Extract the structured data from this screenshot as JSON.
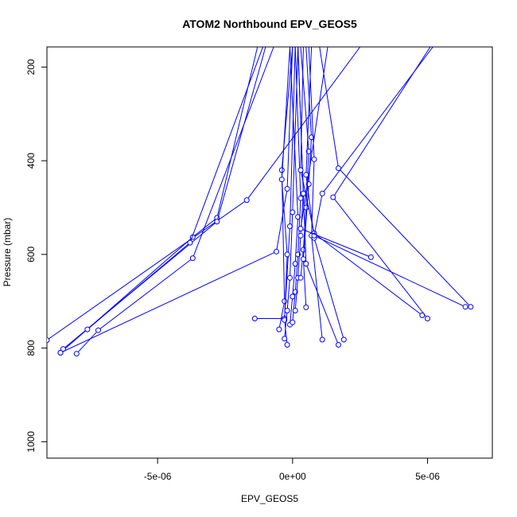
{
  "chart_data": {
    "type": "line",
    "title": "ATOM2 Northbound EPV_GEOS5",
    "xlabel": "EPV_GEOS5",
    "ylabel": "Pressure (mbar)",
    "x_ticks": [
      {
        "value": -5e-06,
        "label": "-5e-06"
      },
      {
        "value": 0,
        "label": "0e+00"
      },
      {
        "value": 5e-06,
        "label": "5e-06"
      }
    ],
    "y_ticks": [
      {
        "value": 200,
        "label": "200"
      },
      {
        "value": 400,
        "label": "400"
      },
      {
        "value": 600,
        "label": "600"
      },
      {
        "value": 800,
        "label": "800"
      },
      {
        "value": 1000,
        "label": "1000"
      }
    ],
    "xlim": [
      -9.1e-06,
      7.4e-06
    ],
    "ylim": [
      1035,
      157
    ],
    "y_reversed": true,
    "grid": false,
    "series_color": "#0000ff",
    "marker": "open-circle",
    "series": [
      {
        "points": [
          [
            -9.1e-06,
            783
          ],
          [
            -1.7e-06,
            484
          ],
          [
            2.5e-06,
            157
          ]
        ]
      },
      {
        "points": [
          [
            -8.6e-06,
            810
          ],
          [
            -3.7e-06,
            563
          ],
          [
            -2.8e-06,
            522
          ],
          [
            -1.3e-06,
            157
          ]
        ]
      },
      {
        "points": [
          [
            -8.5e-06,
            802
          ],
          [
            -2.8e-06,
            530
          ],
          [
            -1e-06,
            157
          ]
        ]
      },
      {
        "points": [
          [
            -7.6e-06,
            760
          ],
          [
            -3.8e-06,
            575
          ],
          [
            -1.1e-06,
            157
          ]
        ]
      },
      {
        "points": [
          [
            -8e-06,
            812
          ],
          [
            -7.2e-06,
            762
          ],
          [
            -3.7e-06,
            608
          ],
          [
            -7e-07,
            157
          ]
        ]
      },
      {
        "points": [
          [
            -8.6e-06,
            810
          ],
          [
            -6e-07,
            594
          ],
          [
            -2e-07,
            460
          ],
          [
            0.0,
            157
          ]
        ]
      },
      {
        "points": [
          [
            -1.4e-06,
            737
          ],
          [
            -3e-07,
            737
          ],
          [
            -1e-07,
            540
          ],
          [
            1e-07,
            157
          ]
        ]
      },
      {
        "points": [
          [
            -5e-07,
            760
          ],
          [
            -3e-07,
            700
          ],
          [
            -4e-07,
            420
          ],
          [
            0.0,
            157
          ]
        ]
      },
      {
        "points": [
          [
            -2e-07,
            793
          ],
          [
            -3e-07,
            740
          ],
          [
            -2e-07,
            600
          ],
          [
            -4e-07,
            440
          ],
          [
            -1e-07,
            157
          ]
        ]
      },
      {
        "points": [
          [
            -3e-07,
            780
          ],
          [
            -2e-07,
            720
          ],
          [
            -1e-07,
            650
          ],
          [
            0.0,
            510
          ],
          [
            2e-07,
            157
          ]
        ]
      },
      {
        "points": [
          [
            -1e-07,
            750
          ],
          [
            0.0,
            690
          ],
          [
            1e-07,
            620
          ],
          [
            2e-07,
            520
          ],
          [
            -1e-07,
            157
          ]
        ]
      },
      {
        "points": [
          [
            0.0,
            745
          ],
          [
            1e-07,
            680
          ],
          [
            2e-07,
            600
          ],
          [
            3e-07,
            480
          ],
          [
            1e-07,
            157
          ]
        ]
      },
      {
        "points": [
          [
            1e-07,
            720
          ],
          [
            2e-07,
            650
          ],
          [
            3e-07,
            560
          ],
          [
            4e-07,
            470
          ],
          [
            2e-07,
            157
          ]
        ]
      },
      {
        "points": [
          [
            3e-07,
            650
          ],
          [
            4e-07,
            590
          ],
          [
            5e-07,
            500
          ],
          [
            6e-07,
            380
          ],
          [
            3e-07,
            157
          ]
        ]
      },
      {
        "points": [
          [
            5e-07,
            713
          ],
          [
            4e-07,
            610
          ],
          [
            6e-07,
            450
          ],
          [
            7e-07,
            350
          ],
          [
            5e-07,
            157
          ]
        ]
      },
      {
        "points": [
          [
            1.1e-06,
            782
          ],
          [
            7e-07,
            560
          ],
          [
            8e-07,
            397
          ],
          [
            6e-07,
            157
          ]
        ]
      },
      {
        "points": [
          [
            1.7e-06,
            793
          ],
          [
            5e-07,
            620
          ],
          [
            4e-07,
            470
          ],
          [
            2e-07,
            157
          ]
        ]
      },
      {
        "points": [
          [
            1.9e-06,
            782
          ],
          [
            8e-07,
            565
          ],
          [
            5e-07,
            430
          ],
          [
            7e-07,
            157
          ]
        ]
      },
      {
        "points": [
          [
            4.8e-06,
            730
          ],
          [
            8e-07,
            555
          ],
          [
            3e-07,
            420
          ],
          [
            4e-07,
            157
          ]
        ]
      },
      {
        "points": [
          [
            5e-06,
            737
          ],
          [
            1.5e-06,
            478
          ],
          [
            5.1e-06,
            157
          ]
        ]
      },
      {
        "points": [
          [
            6.4e-06,
            712
          ],
          [
            8e-07,
            560
          ],
          [
            1.1e-06,
            470
          ],
          [
            5.2e-06,
            157
          ]
        ]
      },
      {
        "points": [
          [
            6.6e-06,
            712
          ],
          [
            1.7e-06,
            416
          ],
          [
            1e-06,
            157
          ]
        ]
      },
      {
        "points": [
          [
            2.9e-06,
            606
          ],
          [
            3e-07,
            545
          ],
          [
            1.3e-06,
            157
          ]
        ]
      }
    ]
  }
}
